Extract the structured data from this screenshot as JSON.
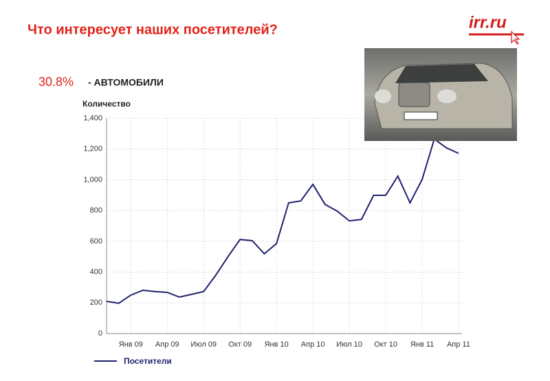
{
  "header": {
    "title": "Что интересует наших посетителей?",
    "logo": "irr.ru",
    "share": "30.8%",
    "topic": "- АВТОМОБИЛИ"
  },
  "chart_data": {
    "type": "line",
    "ylabel": "Количество",
    "categories": [
      null,
      null,
      "Янв 09",
      null,
      null,
      "Апр 09",
      null,
      null,
      "Июл 09",
      null,
      null,
      "Окт 09",
      null,
      null,
      "Янв 10",
      null,
      null,
      "Апр 10",
      null,
      null,
      "Июл 10",
      null,
      null,
      "Окт 10",
      null,
      null,
      "Янв 11",
      null,
      null,
      "Апр 11"
    ],
    "series": [
      {
        "name": "Посетители",
        "color": "#1f1f6e",
        "values": [
          210,
          197,
          250,
          282,
          273,
          268,
          237,
          255,
          273,
          380,
          500,
          612,
          604,
          519,
          585,
          850,
          863,
          970,
          840,
          796,
          733,
          742,
          899,
          899,
          1024,
          850,
          1002,
          1265,
          1208,
          1172
        ]
      }
    ],
    "ylim": [
      0,
      1400
    ],
    "yticks": [
      0,
      200,
      400,
      600,
      800,
      {
        "value": 1000,
        "label": "1,000"
      },
      {
        "value": 1200,
        "label": "1,200"
      },
      {
        "value": 1400,
        "label": "1,400"
      }
    ],
    "grid": true
  }
}
